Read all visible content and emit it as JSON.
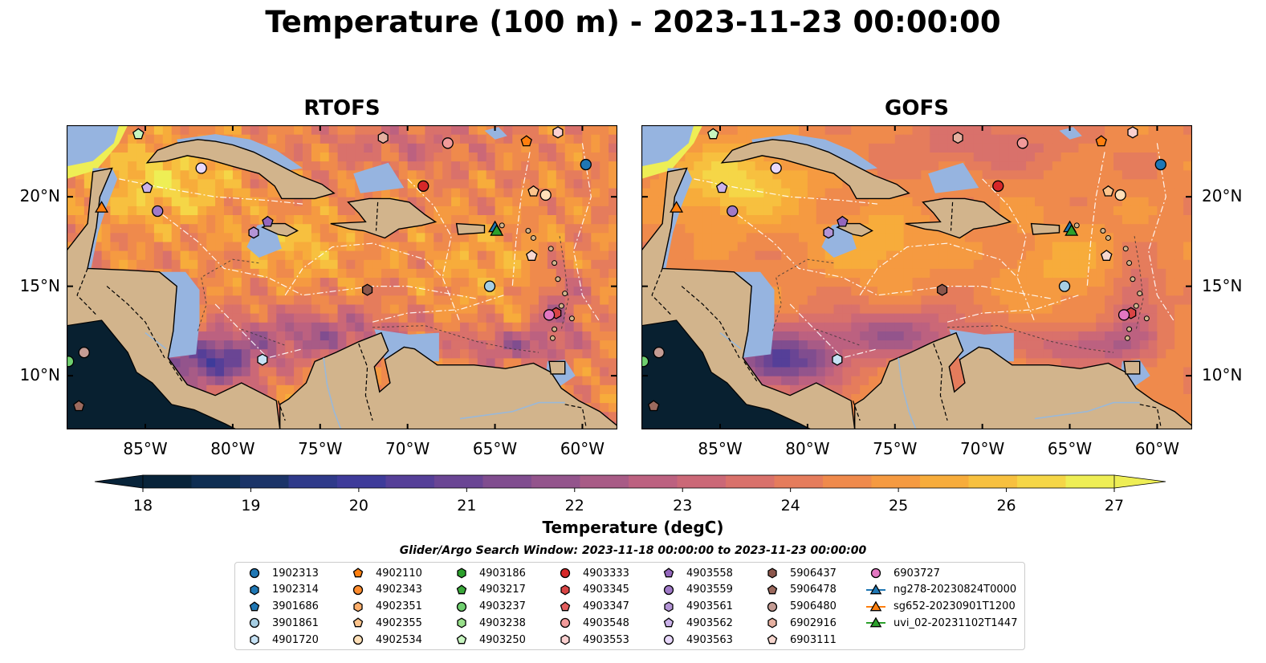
{
  "title": "Temperature (100 m) - 2023-11-23 00:00:00",
  "panels": [
    {
      "id": "rtofs",
      "title": "RTOFS"
    },
    {
      "id": "gofs",
      "title": "GOFS"
    }
  ],
  "map": {
    "lon_range": [
      -89.5,
      -58.0
    ],
    "lat_range": [
      7.0,
      24.0
    ],
    "lon_ticks": [
      {
        "value": -85,
        "label": "85°W"
      },
      {
        "value": -80,
        "label": "80°W"
      },
      {
        "value": -75,
        "label": "75°W"
      },
      {
        "value": -70,
        "label": "70°W"
      },
      {
        "value": -65,
        "label": "65°W"
      },
      {
        "value": -60,
        "label": "60°W"
      }
    ],
    "lat_ticks": [
      {
        "value": 20,
        "label": "20°N"
      },
      {
        "value": 15,
        "label": "15°N"
      },
      {
        "value": 10,
        "label": "10°N"
      }
    ],
    "colors": {
      "land": "#d2b48c",
      "shelf": "#96b4e0",
      "deep_outside": "#082030"
    }
  },
  "colorbar": {
    "label": "Temperature (degC)",
    "min": 18,
    "max": 27,
    "extend": "both",
    "ticks": [
      "18",
      "19",
      "20",
      "21",
      "22",
      "23",
      "24",
      "25",
      "26",
      "27"
    ],
    "colors": [
      "#08243a",
      "#0e2e52",
      "#1b3468",
      "#2f3a8a",
      "#3e3b9a",
      "#553f98",
      "#6a4594",
      "#804d8f",
      "#93548c",
      "#a85b86",
      "#bc6180",
      "#cb6877",
      "#d9716b",
      "#e57c5c",
      "#ef8a4c",
      "#f59a41",
      "#f7ac3b",
      "#f7c03f",
      "#f5d647",
      "#eeee55"
    ]
  },
  "search_window": "Glider/Argo Search Window: 2023-11-18 00:00:00 to 2023-11-23 00:00:00",
  "legend": [
    {
      "label": "1902313",
      "color": "#1f77b4",
      "marker": "circle"
    },
    {
      "label": "1902314",
      "color": "#1f77b4",
      "marker": "hexagon"
    },
    {
      "label": "3901686",
      "color": "#1f77b4",
      "marker": "pentagon"
    },
    {
      "label": "3901861",
      "color": "#a6cee3",
      "marker": "circle"
    },
    {
      "label": "4901720",
      "color": "#c6e2f5",
      "marker": "hexagon"
    },
    {
      "label": "4902110",
      "color": "#ff7f0e",
      "marker": "pentagon"
    },
    {
      "label": "4902343",
      "color": "#ff8c2e",
      "marker": "circle"
    },
    {
      "label": "4902351",
      "color": "#fdae6b",
      "marker": "hexagon"
    },
    {
      "label": "4902355",
      "color": "#fdc48c",
      "marker": "pentagon"
    },
    {
      "label": "4902534",
      "color": "#ffe0b8",
      "marker": "circle"
    },
    {
      "label": "4903186",
      "color": "#2ca02c",
      "marker": "hexagon"
    },
    {
      "label": "4903217",
      "color": "#3aa83a",
      "marker": "pentagon"
    },
    {
      "label": "4903237",
      "color": "#6fcf6f",
      "marker": "circle"
    },
    {
      "label": "4903238",
      "color": "#98df8a",
      "marker": "hexagon"
    },
    {
      "label": "4903250",
      "color": "#c7f5c0",
      "marker": "pentagon"
    },
    {
      "label": "4903333",
      "color": "#d62728",
      "marker": "circle"
    },
    {
      "label": "4903345",
      "color": "#d94444",
      "marker": "hexagon"
    },
    {
      "label": "4903347",
      "color": "#e35d5d",
      "marker": "pentagon"
    },
    {
      "label": "4903548",
      "color": "#f29a9a",
      "marker": "circle"
    },
    {
      "label": "4903553",
      "color": "#fbd0d0",
      "marker": "hexagon"
    },
    {
      "label": "4903558",
      "color": "#9467bd",
      "marker": "pentagon"
    },
    {
      "label": "4903559",
      "color": "#a07ac8",
      "marker": "circle"
    },
    {
      "label": "4903561",
      "color": "#b394d6",
      "marker": "hexagon"
    },
    {
      "label": "4903562",
      "color": "#cbb2ea",
      "marker": "pentagon"
    },
    {
      "label": "4903563",
      "color": "#e8d8fb",
      "marker": "circle"
    },
    {
      "label": "5906437",
      "color": "#8c564b",
      "marker": "hexagon"
    },
    {
      "label": "5906478",
      "color": "#9c6a5e",
      "marker": "pentagon"
    },
    {
      "label": "5906480",
      "color": "#c49c94",
      "marker": "circle"
    },
    {
      "label": "6902916",
      "color": "#e6b0a0",
      "marker": "hexagon"
    },
    {
      "label": "6903111",
      "color": "#f7d7cf",
      "marker": "pentagon"
    },
    {
      "label": "6903727",
      "color": "#e377c2",
      "marker": "circle"
    },
    {
      "label": "ng278-20230824T0000",
      "color": "#1f77b4",
      "marker": "triangle"
    },
    {
      "label": "sg652-20230901T1200",
      "color": "#ff7f0e",
      "marker": "triangle"
    },
    {
      "label": "uvi_02-20231102T1447",
      "color": "#2ca02c",
      "marker": "triangle"
    }
  ],
  "floats": [
    {
      "id": "1902313",
      "lon": -59.8,
      "lat": 21.8
    },
    {
      "id": "3901861",
      "lon": -65.3,
      "lat": 15.0
    },
    {
      "id": "4901720",
      "lon": -78.3,
      "lat": 10.9
    },
    {
      "id": "4902110",
      "lon": -63.2,
      "lat": 23.1
    },
    {
      "id": "4902355",
      "lon": -62.8,
      "lat": 20.3
    },
    {
      "id": "4902534",
      "lon": -62.1,
      "lat": 20.1
    },
    {
      "id": "4903237",
      "lon": -89.4,
      "lat": 10.8
    },
    {
      "id": "4903250",
      "lon": -85.4,
      "lat": 23.5
    },
    {
      "id": "4903333",
      "lon": -69.1,
      "lat": 20.6
    },
    {
      "id": "4903345",
      "lon": -61.5,
      "lat": 13.5
    },
    {
      "id": "4903548",
      "lon": -67.7,
      "lat": 23.0
    },
    {
      "id": "4903553",
      "lon": -61.4,
      "lat": 23.6
    },
    {
      "id": "4903558",
      "lon": -78.0,
      "lat": 18.6
    },
    {
      "id": "4903559",
      "lon": -84.3,
      "lat": 19.2
    },
    {
      "id": "4903561",
      "lon": -78.8,
      "lat": 18.0
    },
    {
      "id": "4903562",
      "lon": -84.9,
      "lat": 20.5
    },
    {
      "id": "4903563",
      "lon": -81.8,
      "lat": 21.6
    },
    {
      "id": "5906437",
      "lon": -72.3,
      "lat": 14.8
    },
    {
      "id": "5906478",
      "lon": -88.8,
      "lat": 8.3
    },
    {
      "id": "5906480",
      "lon": -88.5,
      "lat": 11.3
    },
    {
      "id": "6902916",
      "lon": -71.4,
      "lat": 23.3
    },
    {
      "id": "6903111",
      "lon": -62.9,
      "lat": 16.7
    },
    {
      "id": "6903727",
      "lon": -61.9,
      "lat": 13.4
    },
    {
      "id": "ng278-20230824T0000",
      "lon": -65.0,
      "lat": 18.3
    },
    {
      "id": "sg652-20230901T1200",
      "lon": -87.5,
      "lat": 19.4
    },
    {
      "id": "uvi_02-20231102T1447",
      "lon": -64.9,
      "lat": 18.1
    }
  ]
}
